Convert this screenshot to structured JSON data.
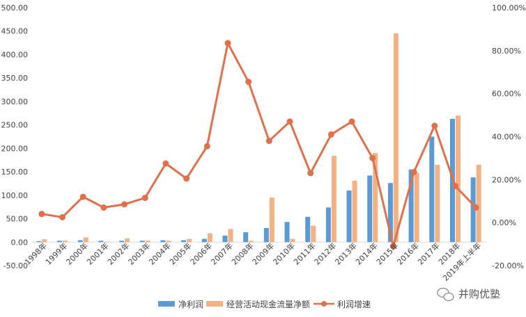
{
  "chart_data": {
    "type": "bar+line",
    "categories": [
      "1998年",
      "1999年",
      "2000年",
      "2001年",
      "2002年",
      "2003年",
      "2004年",
      "2005年",
      "2006年",
      "2007年",
      "2008年",
      "2009年",
      "2010年",
      "2011年",
      "2012年",
      "2013年",
      "2014年",
      "2015年",
      "2016年",
      "2017年",
      "2018年",
      "2019年上半年"
    ],
    "series": [
      {
        "name": "净利润",
        "type": "bar",
        "axis": "left",
        "color": "#5B9BD5",
        "values": [
          2,
          3,
          4,
          3,
          3,
          3,
          4,
          4,
          7,
          14,
          21,
          30,
          43,
          54,
          74,
          110,
          142,
          126,
          155,
          225,
          263,
          138
        ]
      },
      {
        "name": "经营活动现金流量净额",
        "type": "bar",
        "axis": "left",
        "color": "#F4B183",
        "values": [
          6,
          3,
          10,
          1,
          8,
          3,
          3,
          7,
          19,
          28,
          3,
          95,
          7,
          35,
          184,
          131,
          190,
          445,
          148,
          165,
          270,
          165
        ]
      },
      {
        "name": "利润增速",
        "type": "line",
        "axis": "right",
        "color": "#E0704A",
        "values": [
          4.0,
          2.5,
          12.0,
          7.0,
          8.5,
          11.5,
          27.5,
          20.5,
          35.5,
          83.5,
          65.5,
          38.0,
          47.0,
          23.0,
          41.0,
          47.0,
          30.0,
          -11.0,
          23.5,
          45.0,
          17.0,
          7.0
        ]
      }
    ],
    "y_left": {
      "min": -50,
      "max": 500,
      "step": 50,
      "tick_labels": [
        "-50.00",
        "0.00",
        "50.00",
        "100.00",
        "150.00",
        "200.00",
        "250.00",
        "300.00",
        "350.00",
        "400.00",
        "450.00",
        "500.00"
      ]
    },
    "y_right": {
      "min": -20,
      "max": 100,
      "step": 20,
      "tick_labels": [
        "-20.00%",
        "0.00%",
        "20.00%",
        "40.00%",
        "60.00%",
        "80.00%",
        "100.00%"
      ]
    },
    "legend": {
      "placement": "bottom-center",
      "items": [
        {
          "label": "净利润",
          "kind": "bar",
          "color": "#5B9BD5"
        },
        {
          "label": "经营活动现金流量净额",
          "kind": "bar",
          "color": "#F4B183"
        },
        {
          "label": "利润增速",
          "kind": "line",
          "color": "#E0704A"
        }
      ]
    },
    "grid": false,
    "title": ""
  },
  "watermark": {
    "text": "并购优塾",
    "icon": "wechat-icon"
  }
}
